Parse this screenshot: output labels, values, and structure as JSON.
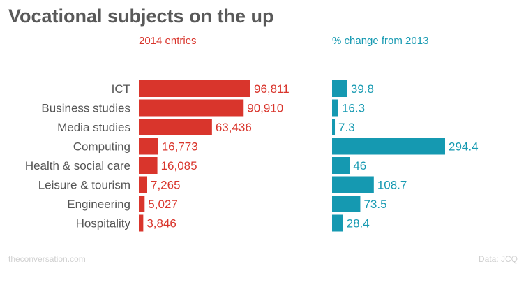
{
  "title": "Vocational subjects on the up",
  "source_left": "theconversation.com",
  "source_right": "Data: JCQ",
  "colors": {
    "entries": "#d9352c",
    "change": "#1599b1",
    "label": "#555555"
  },
  "chart_data": [
    {
      "type": "bar",
      "orientation": "horizontal",
      "title": "2014 entries",
      "categories": [
        "ICT",
        "Business studies",
        "Media studies",
        "Computing",
        "Health & social care",
        "Leisure & tourism",
        "Engineering",
        "Hospitality"
      ],
      "values": [
        96811,
        90910,
        63436,
        16773,
        16085,
        7265,
        5027,
        3846
      ],
      "value_labels": [
        "96,811",
        "90,910",
        "63,436",
        "16,773",
        "16,085",
        "7,265",
        "5,027",
        "3,846"
      ],
      "xlim": [
        0,
        96811
      ],
      "grid": false
    },
    {
      "type": "bar",
      "orientation": "horizontal",
      "title": "% change from 2013",
      "categories": [
        "ICT",
        "Business studies",
        "Media studies",
        "Computing",
        "Health & social care",
        "Leisure & tourism",
        "Engineering",
        "Hospitality"
      ],
      "values": [
        39.8,
        16.3,
        7.3,
        294.4,
        46,
        108.7,
        73.5,
        28.4
      ],
      "value_labels": [
        "39.8",
        "16.3",
        "7.3",
        "294.4",
        "46",
        "108.7",
        "73.5",
        "28.4"
      ],
      "xlim": [
        0,
        294.4
      ],
      "grid": false
    }
  ]
}
